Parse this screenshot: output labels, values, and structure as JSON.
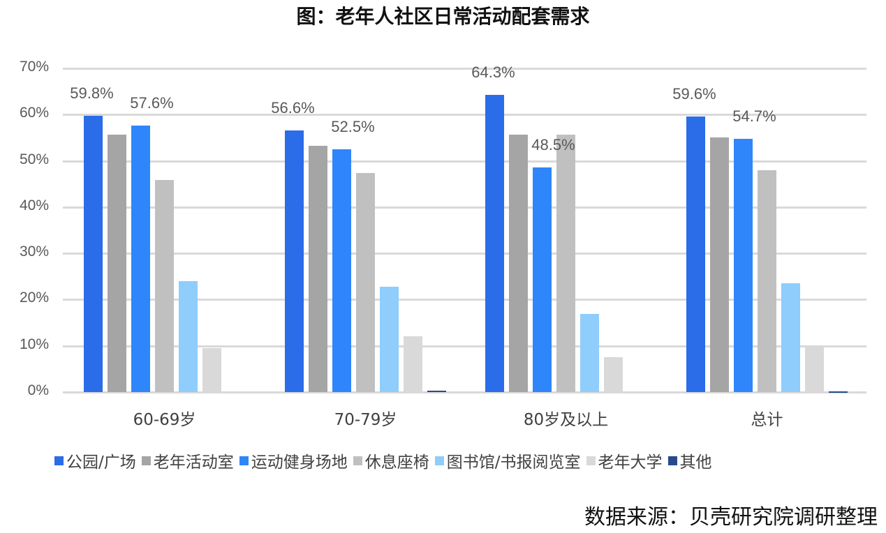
{
  "title": "图：老年人社区日常活动配套需求",
  "source": "数据来源：贝壳研究院调研整理",
  "y_ticks": [
    "70%",
    "60%",
    "50%",
    "40%",
    "30%",
    "20%",
    "10%",
    "0%"
  ],
  "chart_data": {
    "type": "bar",
    "title": "图：老年人社区日常活动配套需求",
    "xlabel": "",
    "ylabel": "",
    "ylim": [
      0,
      70
    ],
    "y_tick_labels": [
      "0%",
      "10%",
      "20%",
      "30%",
      "40%",
      "50%",
      "60%",
      "70%"
    ],
    "grid": true,
    "legend_position": "bottom",
    "categories": [
      "60-69岁",
      "70-79岁",
      "80岁及以上",
      "总计"
    ],
    "series": [
      {
        "name": "公园/广场",
        "color": "#2b6ce8",
        "values": [
          59.8,
          56.6,
          64.3,
          59.6
        ]
      },
      {
        "name": "老年活动室",
        "color": "#a5a5a5",
        "values": [
          55.7,
          53.3,
          55.7,
          55.1
        ]
      },
      {
        "name": "运动健身场地",
        "color": "#2e86fa",
        "values": [
          57.6,
          52.5,
          48.5,
          54.7
        ]
      },
      {
        "name": "休息座椅",
        "color": "#c0c0c0",
        "values": [
          45.9,
          47.4,
          55.7,
          47.9
        ]
      },
      {
        "name": "图书馆/书报阅览室",
        "color": "#8ecdfc",
        "values": [
          24.0,
          22.7,
          16.9,
          23.5
        ]
      },
      {
        "name": "老年大学",
        "color": "#d9d9d9",
        "values": [
          9.5,
          12.0,
          7.6,
          10.1
        ]
      },
      {
        "name": "其他",
        "color": "#264a8c",
        "values": [
          0,
          0.3,
          0,
          0.2
        ]
      }
    ],
    "data_labels": [
      {
        "category": "60-69岁",
        "series": "公园/广场",
        "text": "59.8%"
      },
      {
        "category": "60-69岁",
        "series": "运动健身场地",
        "text": "57.6%"
      },
      {
        "category": "70-79岁",
        "series": "公园/广场",
        "text": "56.6%"
      },
      {
        "category": "70-79岁",
        "series": "运动健身场地",
        "text": "52.5%"
      },
      {
        "category": "80岁及以上",
        "series": "公园/广场",
        "text": "64.3%"
      },
      {
        "category": "80岁及以上",
        "series": "运动健身场地",
        "text": "48.5%"
      },
      {
        "category": "总计",
        "series": "公园/广场",
        "text": "59.6%"
      },
      {
        "category": "总计",
        "series": "运动健身场地",
        "text": "54.7%"
      }
    ]
  }
}
